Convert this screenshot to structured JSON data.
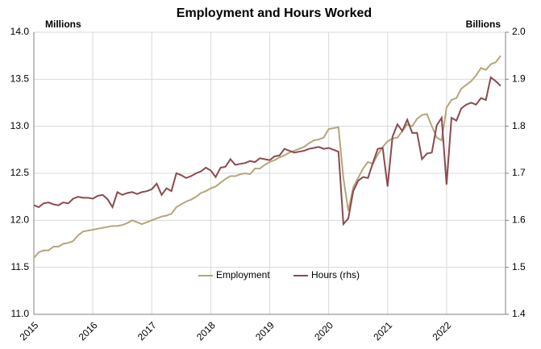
{
  "chart_data": {
    "type": "line",
    "title": "Employment and Hours Worked",
    "y_label": "Millions",
    "y2_label": "Billions",
    "x": [
      2015,
      2015.0833,
      2015.1667,
      2015.25,
      2015.3333,
      2015.4167,
      2015.5,
      2015.5833,
      2015.6667,
      2015.75,
      2015.8333,
      2015.9167,
      2016,
      2016.0833,
      2016.1667,
      2016.25,
      2016.3333,
      2016.4167,
      2016.5,
      2016.5833,
      2016.6667,
      2016.75,
      2016.8333,
      2016.9167,
      2017,
      2017.0833,
      2017.1667,
      2017.25,
      2017.3333,
      2017.4167,
      2017.5,
      2017.5833,
      2017.6667,
      2017.75,
      2017.8333,
      2017.9167,
      2018,
      2018.0833,
      2018.1667,
      2018.25,
      2018.3333,
      2018.4167,
      2018.5,
      2018.5833,
      2018.6667,
      2018.75,
      2018.8333,
      2018.9167,
      2019,
      2019.0833,
      2019.1667,
      2019.25,
      2019.3333,
      2019.4167,
      2019.5,
      2019.5833,
      2019.6667,
      2019.75,
      2019.8333,
      2019.9167,
      2020,
      2020.0833,
      2020.1667,
      2020.25,
      2020.3333,
      2020.4167,
      2020.5,
      2020.5833,
      2020.6667,
      2020.75,
      2020.8333,
      2020.9167,
      2021,
      2021.0833,
      2021.1667,
      2021.25,
      2021.3333,
      2021.4167,
      2021.5,
      2021.5833,
      2021.6667,
      2021.75,
      2021.8333,
      2021.9167,
      2022,
      2022.0833,
      2022.1667,
      2022.25,
      2022.3333,
      2022.4167,
      2022.5,
      2022.5833,
      2022.6667,
      2022.75,
      2022.8333,
      2022.9167
    ],
    "series": [
      {
        "name": "Employment",
        "color": "#b5a57a",
        "axis": "y",
        "values": [
          11.6,
          11.66,
          11.68,
          11.68,
          11.72,
          11.72,
          11.75,
          11.76,
          11.78,
          11.84,
          11.88,
          11.89,
          11.9,
          11.91,
          11.92,
          11.93,
          11.94,
          11.94,
          11.95,
          11.97,
          12.0,
          11.98,
          11.96,
          11.98,
          12.0,
          12.02,
          12.04,
          12.05,
          12.07,
          12.14,
          12.17,
          12.2,
          12.22,
          12.25,
          12.29,
          12.31,
          12.34,
          12.36,
          12.4,
          12.44,
          12.47,
          12.47,
          12.49,
          12.5,
          12.49,
          12.55,
          12.55,
          12.59,
          12.62,
          12.64,
          12.67,
          12.69,
          12.72,
          12.74,
          12.76,
          12.78,
          12.82,
          12.85,
          12.86,
          12.88,
          12.97,
          12.98,
          12.99,
          12.45,
          12.1,
          12.35,
          12.45,
          12.55,
          12.62,
          12.6,
          12.7,
          12.78,
          12.84,
          12.87,
          12.88,
          12.95,
          13.02,
          13.0,
          13.08,
          13.12,
          13.13,
          13.0,
          12.88,
          12.85,
          13.2,
          13.28,
          13.3,
          13.4,
          13.44,
          13.48,
          13.54,
          13.62,
          13.6,
          13.66,
          13.68,
          13.75
        ]
      },
      {
        "name": "Hours (rhs)",
        "color": "#8b4a4f",
        "axis": "y2",
        "values": [
          1.632,
          1.628,
          1.636,
          1.638,
          1.634,
          1.632,
          1.638,
          1.636,
          1.646,
          1.65,
          1.648,
          1.648,
          1.646,
          1.652,
          1.654,
          1.645,
          1.628,
          1.66,
          1.654,
          1.658,
          1.66,
          1.656,
          1.66,
          1.662,
          1.666,
          1.678,
          1.654,
          1.668,
          1.662,
          1.7,
          1.696,
          1.69,
          1.694,
          1.7,
          1.704,
          1.712,
          1.706,
          1.692,
          1.712,
          1.714,
          1.73,
          1.718,
          1.72,
          1.722,
          1.726,
          1.724,
          1.732,
          1.73,
          1.728,
          1.736,
          1.738,
          1.752,
          1.748,
          1.744,
          1.746,
          1.748,
          1.752,
          1.754,
          1.756,
          1.752,
          1.754,
          1.75,
          1.746,
          1.592,
          1.604,
          1.662,
          1.684,
          1.692,
          1.69,
          1.722,
          1.752,
          1.754,
          1.672,
          1.778,
          1.804,
          1.79,
          1.814,
          1.786,
          1.786,
          1.73,
          1.742,
          1.744,
          1.802,
          1.818,
          1.676,
          1.818,
          1.812,
          1.838,
          1.846,
          1.85,
          1.846,
          1.86,
          1.856,
          1.904,
          1.896,
          1.886
        ]
      }
    ],
    "xlim": [
      2015,
      2023
    ],
    "xticks": [
      2015,
      2016,
      2017,
      2018,
      2019,
      2020,
      2021,
      2022
    ],
    "ylim": [
      11,
      14
    ],
    "yticks": [
      {
        "value": 11,
        "label": "11.0"
      },
      11.5,
      {
        "value": 12,
        "label": "12.0"
      },
      12.5,
      {
        "value": 13,
        "label": "13.0"
      },
      13.5,
      {
        "value": 14,
        "label": "14.0"
      }
    ],
    "y2lim": [
      1.4,
      2.0
    ],
    "y2ticks": [
      1.4,
      1.5,
      1.6,
      1.7,
      1.8,
      1.9,
      {
        "value": 2,
        "label": "2.0"
      }
    ],
    "grid": true,
    "legend": "bottom"
  }
}
